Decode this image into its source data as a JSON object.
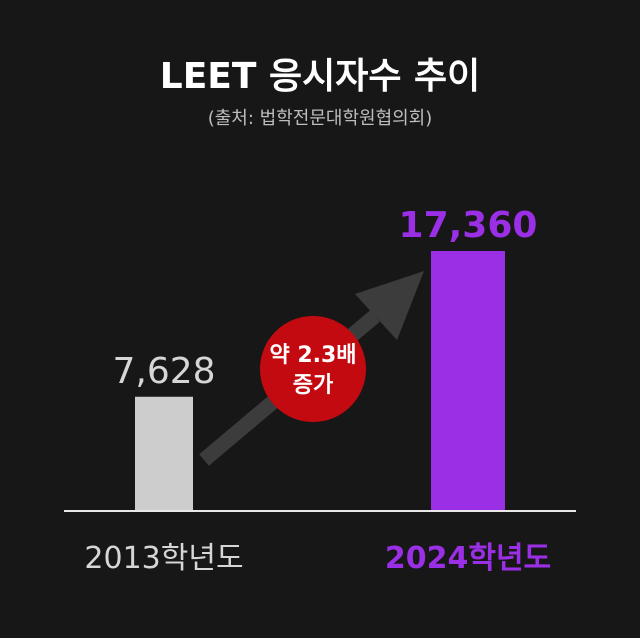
{
  "title": "LEET 응시자수 추이",
  "subtitle": "(출처: 법학전문대학원협의회)",
  "chart_data": {
    "type": "bar",
    "title": "LEET 응시자수 추이",
    "categories": [
      "2013학년도",
      "2024학년도"
    ],
    "values": [
      7628,
      17360
    ],
    "value_labels": [
      "7,628",
      "17,360"
    ],
    "ylim": [
      0,
      17360
    ],
    "grid": false,
    "colors": [
      "#cdcdcd",
      "#9a2fe6"
    ],
    "label_colors": [
      "#d6d6d6",
      "#9a2fe6"
    ],
    "annotation": {
      "line1": "약 2.3배",
      "line2": "증가",
      "color": "#c40a11"
    },
    "arrow_color": "#3c3c3c"
  }
}
